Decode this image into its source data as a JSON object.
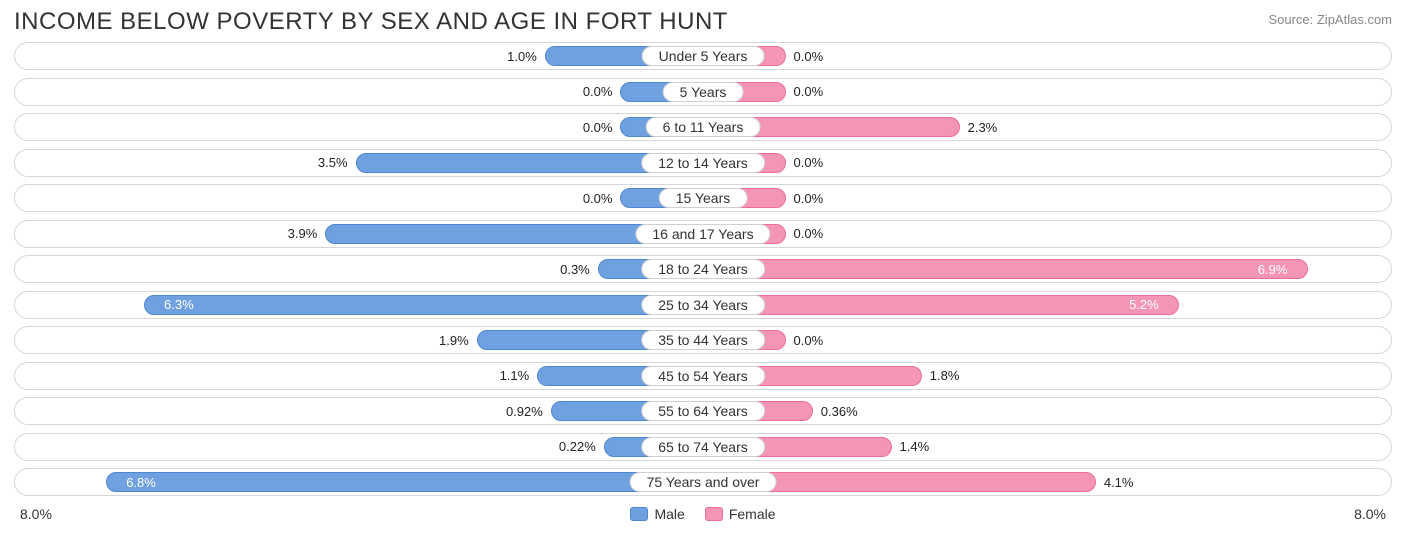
{
  "title": "INCOME BELOW POVERTY BY SEX AND AGE IN FORT HUNT",
  "source": "Source: ZipAtlas.com",
  "chart": {
    "type": "diverging-bar",
    "axis_max": 8.0,
    "axis_label_left": "8.0%",
    "axis_label_right": "8.0%",
    "min_bar_pct": 12,
    "colors": {
      "male_fill": "#6fa0e0",
      "male_border": "#4f86d1",
      "female_fill": "#f495b6",
      "female_border": "#ec6e99",
      "track_border": "#d6d6d6",
      "text": "#333333",
      "value_text": "#222222",
      "value_text_inside": "#ffffff",
      "background": "#ffffff"
    },
    "categories": [
      {
        "label": "Under 5 Years",
        "male": 1.0,
        "female": 0.0,
        "male_display": "1.0%",
        "female_display": "0.0%"
      },
      {
        "label": "5 Years",
        "male": 0.0,
        "female": 0.0,
        "male_display": "0.0%",
        "female_display": "0.0%"
      },
      {
        "label": "6 to 11 Years",
        "male": 0.0,
        "female": 2.3,
        "male_display": "0.0%",
        "female_display": "2.3%"
      },
      {
        "label": "12 to 14 Years",
        "male": 3.5,
        "female": 0.0,
        "male_display": "3.5%",
        "female_display": "0.0%"
      },
      {
        "label": "15 Years",
        "male": 0.0,
        "female": 0.0,
        "male_display": "0.0%",
        "female_display": "0.0%"
      },
      {
        "label": "16 and 17 Years",
        "male": 3.9,
        "female": 0.0,
        "male_display": "3.9%",
        "female_display": "0.0%"
      },
      {
        "label": "18 to 24 Years",
        "male": 0.3,
        "female": 6.9,
        "male_display": "0.3%",
        "female_display": "6.9%",
        "female_inside": true
      },
      {
        "label": "25 to 34 Years",
        "male": 6.3,
        "female": 5.2,
        "male_display": "6.3%",
        "female_display": "5.2%",
        "male_inside": true,
        "female_inside": true
      },
      {
        "label": "35 to 44 Years",
        "male": 1.9,
        "female": 0.0,
        "male_display": "1.9%",
        "female_display": "0.0%"
      },
      {
        "label": "45 to 54 Years",
        "male": 1.1,
        "female": 1.8,
        "male_display": "1.1%",
        "female_display": "1.8%"
      },
      {
        "label": "55 to 64 Years",
        "male": 0.92,
        "female": 0.36,
        "male_display": "0.92%",
        "female_display": "0.36%"
      },
      {
        "label": "65 to 74 Years",
        "male": 0.22,
        "female": 1.4,
        "male_display": "0.22%",
        "female_display": "1.4%"
      },
      {
        "label": "75 Years and over",
        "male": 6.8,
        "female": 4.1,
        "male_display": "6.8%",
        "female_display": "4.1%",
        "male_inside": true
      }
    ],
    "legend": {
      "male": "Male",
      "female": "Female"
    }
  }
}
